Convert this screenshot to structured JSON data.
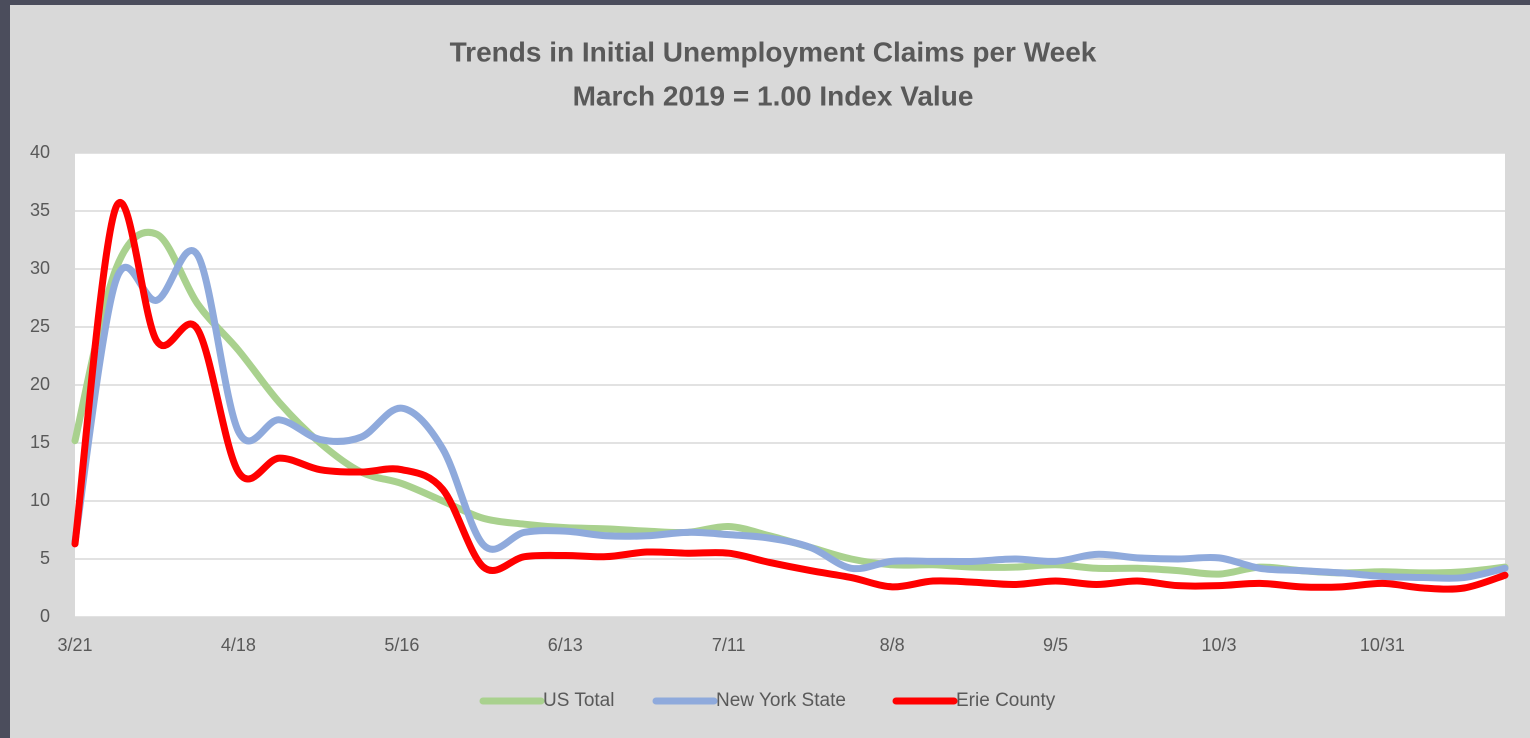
{
  "chart_data": {
    "type": "line",
    "title": "Trends in Initial Unemployment Claims per Week",
    "subtitle": "March 2019 = 1.00 Index Value",
    "categories": [
      "3/21",
      null,
      null,
      null,
      "4/18",
      null,
      null,
      null,
      "5/16",
      null,
      null,
      null,
      "6/13",
      null,
      null,
      null,
      "7/11",
      null,
      null,
      null,
      "8/8",
      null,
      null,
      null,
      "9/5",
      null,
      null,
      null,
      "10/3",
      null,
      null,
      null,
      "10/31",
      null,
      null,
      null
    ],
    "series": [
      {
        "name": "US Total",
        "color": "#a9d18e",
        "values": [
          15.2,
          30,
          33,
          27,
          23,
          18.5,
          15,
          12.5,
          11.5,
          10,
          8.5,
          8,
          7.7,
          7.6,
          7.4,
          7.3,
          7.8,
          7,
          6,
          5,
          4.5,
          4.5,
          4.3,
          4.3,
          4.5,
          4.2,
          4.2,
          4,
          3.7,
          4.3,
          4,
          3.8,
          3.9,
          3.8,
          3.9,
          4.3
        ]
      },
      {
        "name": "New York State",
        "color": "#8faadc",
        "values": [
          6.5,
          29,
          27.3,
          31.2,
          16,
          17,
          15.3,
          15.5,
          18,
          14.5,
          6.2,
          7.3,
          7.4,
          7,
          7,
          7.3,
          7.1,
          6.8,
          6,
          4.2,
          4.8,
          4.8,
          4.8,
          5,
          4.8,
          5.4,
          5.1,
          5,
          5.1,
          4.2,
          4,
          3.8,
          3.5,
          3.4,
          3.4,
          4.2
        ]
      },
      {
        "name": "Erie County",
        "color": "#ff0000",
        "values": [
          6.3,
          35.3,
          23.8,
          24.8,
          12.5,
          13.7,
          12.7,
          12.5,
          12.7,
          11,
          4.3,
          5.2,
          5.3,
          5.2,
          5.6,
          5.5,
          5.5,
          4.7,
          4,
          3.4,
          2.6,
          3.1,
          3,
          2.8,
          3.1,
          2.8,
          3.1,
          2.7,
          2.7,
          2.9,
          2.6,
          2.6,
          2.9,
          2.5,
          2.5,
          3.6
        ]
      }
    ],
    "ylim": [
      0,
      40
    ],
    "yticks": [
      0,
      5,
      10,
      15,
      20,
      25,
      30,
      35,
      40
    ],
    "grid": true,
    "legend": "bottom"
  }
}
